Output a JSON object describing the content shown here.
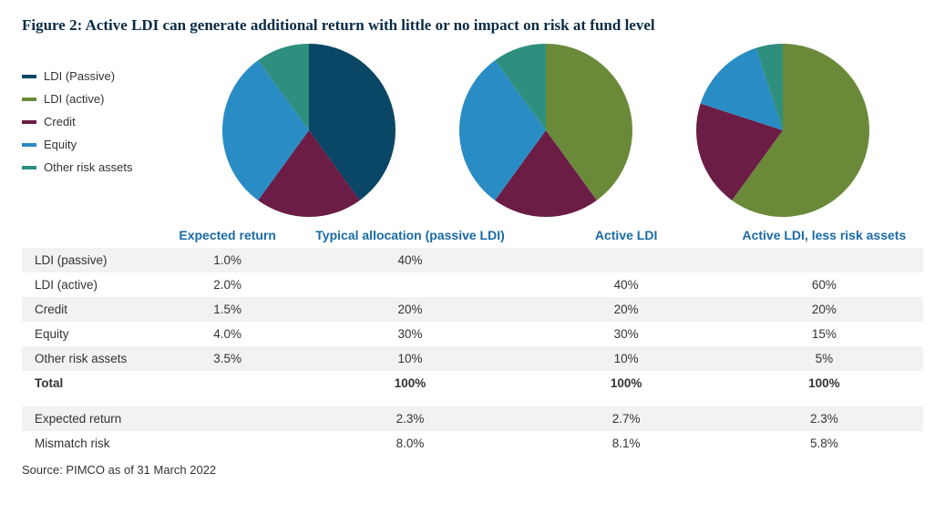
{
  "title": "Figure 2: Active LDI can generate additional return with little or no impact on risk at fund level",
  "source": "Source: PIMCO as of 31 March 2022",
  "colors": {
    "ldi_passive": "#0a4666",
    "ldi_active": "#6a8a3a",
    "credit": "#6b1d45",
    "equity": "#2a8cc4",
    "other": "#2f8f7f",
    "background": "#ffffff",
    "band": "#f2f2f2",
    "header_text": "#1a6aa6",
    "title_text": "#0a2b45"
  },
  "legend": [
    {
      "key": "ldi_passive",
      "label": "LDI (Passive)"
    },
    {
      "key": "ldi_active",
      "label": "LDI (active)"
    },
    {
      "key": "credit",
      "label": "Credit"
    },
    {
      "key": "equity",
      "label": "Equity"
    },
    {
      "key": "other",
      "label": "Other risk assets"
    }
  ],
  "pies": [
    {
      "id": "typical",
      "diameter": 190,
      "start_angle_deg": 0,
      "slices": [
        {
          "key": "ldi_passive",
          "value": 40
        },
        {
          "key": "credit",
          "value": 20
        },
        {
          "key": "equity",
          "value": 30
        },
        {
          "key": "other",
          "value": 10
        }
      ]
    },
    {
      "id": "active",
      "diameter": 190,
      "start_angle_deg": 0,
      "slices": [
        {
          "key": "ldi_active",
          "value": 40
        },
        {
          "key": "credit",
          "value": 20
        },
        {
          "key": "equity",
          "value": 30
        },
        {
          "key": "other",
          "value": 10
        }
      ]
    },
    {
      "id": "active_less",
      "diameter": 190,
      "start_angle_deg": 0,
      "slices": [
        {
          "key": "ldi_active",
          "value": 60
        },
        {
          "key": "credit",
          "value": 20
        },
        {
          "key": "equity",
          "value": 15
        },
        {
          "key": "other",
          "value": 5
        }
      ]
    }
  ],
  "table": {
    "headers": {
      "label": "",
      "expected_return": "Expected return",
      "typical": "Typical allocation (passive LDI)",
      "active": "Active LDI",
      "active_less": "Active LDI, less risk assets"
    },
    "rows": [
      {
        "label": "LDI (passive)",
        "er": "1.0%",
        "a": "40%",
        "b": "",
        "c": ""
      },
      {
        "label": "LDI (active)",
        "er": "2.0%",
        "a": "",
        "b": "40%",
        "c": "60%"
      },
      {
        "label": "Credit",
        "er": "1.5%",
        "a": "20%",
        "b": "20%",
        "c": "20%"
      },
      {
        "label": "Equity",
        "er": "4.0%",
        "a": "30%",
        "b": "30%",
        "c": "15%"
      },
      {
        "label": "Other risk assets",
        "er": "3.5%",
        "a": "10%",
        "b": "10%",
        "c": "5%"
      }
    ],
    "total": {
      "label": "Total",
      "er": "",
      "a": "100%",
      "b": "100%",
      "c": "100%"
    },
    "footer": [
      {
        "label": "Expected return",
        "er": "",
        "a": "2.3%",
        "b": "2.7%",
        "c": "2.3%"
      },
      {
        "label": "Mismatch risk",
        "er": "",
        "a": "8.0%",
        "b": "8.1%",
        "c": "5.8%"
      }
    ]
  },
  "typography": {
    "title_fontsize_pt": 13,
    "body_fontsize_pt": 10,
    "header_fontsize_pt": 11,
    "header_fontweight": 700
  }
}
